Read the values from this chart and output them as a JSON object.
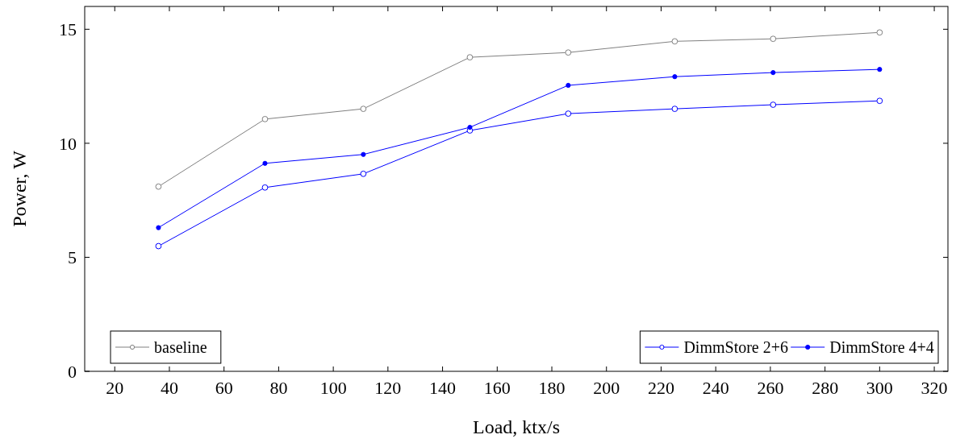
{
  "chart_data": {
    "type": "line",
    "xlabel": "Load, ktx/s",
    "ylabel": "Power, W",
    "x": [
      36,
      75,
      111,
      150,
      186,
      225,
      261,
      300
    ],
    "series": [
      {
        "name": "baseline",
        "color": "#808080",
        "values": [
          8.1,
          11.06,
          11.51,
          13.77,
          13.98,
          14.47,
          14.58,
          14.86
        ]
      },
      {
        "name": "DimmStore 2+6",
        "color": "#0000ff",
        "values": [
          5.49,
          8.06,
          8.66,
          10.56,
          11.3,
          11.51,
          11.69,
          11.86
        ]
      },
      {
        "name": "DimmStore 4+4",
        "color": "#0000ff",
        "values": [
          6.3,
          9.12,
          9.51,
          10.7,
          12.54,
          12.92,
          13.1,
          13.24
        ]
      }
    ],
    "xlim": [
      9,
      325
    ],
    "ylim": [
      0,
      16
    ],
    "xticks": [
      20,
      40,
      60,
      80,
      100,
      120,
      140,
      160,
      180,
      200,
      220,
      240,
      260,
      280,
      300,
      320
    ],
    "yticks": [
      0,
      5,
      10,
      15
    ],
    "marker": "circle",
    "line_style": "solid",
    "legend": "bottom",
    "grid": false
  }
}
